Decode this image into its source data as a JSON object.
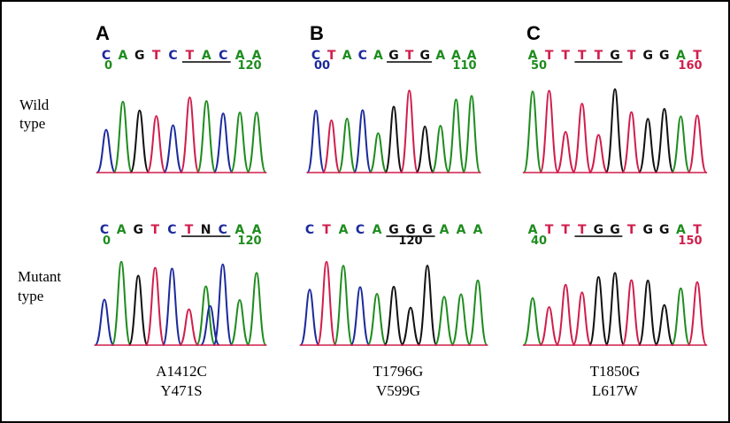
{
  "base_colors": {
    "A": "#1e8c1e",
    "C": "#1c2a9c",
    "G": "#111111",
    "T": "#d01e4c",
    "N": "#111111"
  },
  "row_labels": [
    [
      "Wild",
      "type"
    ],
    [
      "Mutant",
      "type"
    ]
  ],
  "panels": [
    {
      "label": "A",
      "wild": {
        "bases": [
          "C",
          "A",
          "G",
          "T",
          "C",
          "T",
          "A",
          "C",
          "A",
          "A"
        ],
        "numbers": [
          {
            "text": "0",
            "color": "#1e8c1e"
          },
          {
            "text": "120",
            "color": "#1e8c1e"
          }
        ]
      },
      "mutant": {
        "bases": [
          "C",
          "A",
          "G",
          "T",
          "C",
          "T",
          "N",
          "C",
          "A",
          "A"
        ],
        "numbers": [
          {
            "text": "0",
            "color": "#1e8c1e"
          },
          {
            "text": "120",
            "color": "#1e8c1e"
          }
        ]
      },
      "mutation": [
        "A1412C",
        "Y471S"
      ]
    },
    {
      "label": "B",
      "wild": {
        "bases": [
          "C",
          "T",
          "A",
          "C",
          "A",
          "G",
          "T",
          "G",
          "A",
          "A",
          "A"
        ],
        "numbers": [
          {
            "text": "00",
            "color": "#1c2a9c"
          },
          {
            "text": "110",
            "color": "#1e8c1e"
          }
        ]
      },
      "mutant": {
        "bases": [
          "C",
          "T",
          "A",
          "C",
          "A",
          "G",
          "G",
          "G",
          "A",
          "A",
          "A"
        ],
        "numbers": [
          {
            "text": "120",
            "color": "#111111"
          }
        ]
      },
      "mutation": [
        "T1796G",
        "V599G"
      ]
    },
    {
      "label": "C",
      "wild": {
        "bases": [
          "A",
          "T",
          "T",
          "T",
          "T",
          "G",
          "T",
          "G",
          "G",
          "A",
          "T"
        ],
        "numbers": [
          {
            "text": "50",
            "color": "#1e8c1e"
          },
          {
            "text": "160",
            "color": "#d01e4c"
          }
        ]
      },
      "mutant": {
        "bases": [
          "A",
          "T",
          "T",
          "T",
          "G",
          "G",
          "T",
          "G",
          "G",
          "A",
          "T"
        ],
        "numbers": [
          {
            "text": "40",
            "color": "#1e8c1e"
          },
          {
            "text": "150",
            "color": "#d01e4c"
          }
        ]
      },
      "mutation": [
        "T1850G",
        "L617W"
      ]
    }
  ]
}
